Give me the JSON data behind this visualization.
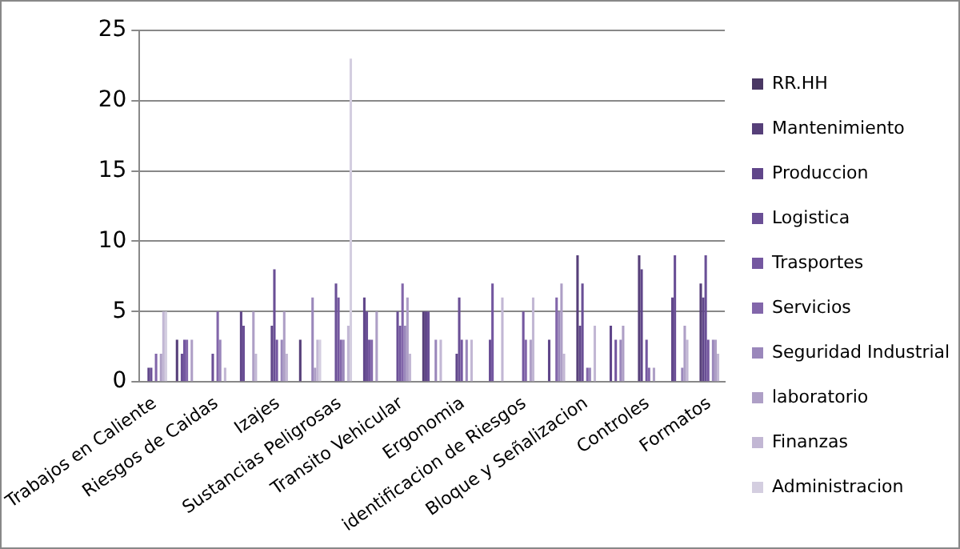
{
  "chart_data": {
    "type": "bar",
    "categories": [
      "Trabajos en Caliente",
      null,
      "Riesgos de Caidas",
      null,
      "Izajes",
      null,
      "Sustancias Peligrosas",
      null,
      "Transito Vehicular",
      null,
      "Ergonomia",
      null,
      "identificacion de Riesgos",
      null,
      "Bloque y Señalizacion",
      null,
      "Controles",
      null,
      "Formatos"
    ],
    "ylim": [
      0,
      25
    ],
    "yticks": [
      0,
      5,
      10,
      15,
      20,
      25
    ],
    "grid": "y",
    "legend": "right",
    "series": [
      {
        "name": "RR.HH",
        "color": "#493763",
        "values": [
          0,
          0,
          0,
          0,
          0,
          0,
          0,
          0,
          0,
          0,
          0,
          0,
          0,
          0,
          0,
          0,
          0,
          0,
          0
        ]
      },
      {
        "name": "Mantenimiento",
        "color": "#563f79",
        "values": [
          0,
          3,
          0,
          0,
          0,
          3,
          0,
          0,
          0,
          5,
          0,
          0,
          0,
          0,
          9,
          0,
          9,
          0,
          7
        ]
      },
      {
        "name": "Produccion",
        "color": "#60468a",
        "values": [
          1,
          0,
          0,
          5,
          4,
          0,
          0,
          6,
          0,
          5,
          2,
          0,
          0,
          3,
          4,
          4,
          8,
          6,
          6
        ]
      },
      {
        "name": "Logistica",
        "color": "#6a4f96",
        "values": [
          1,
          2,
          2,
          4,
          8,
          0,
          7,
          5,
          5,
          5,
          6,
          3,
          0,
          0,
          7,
          0,
          0,
          9,
          9
        ]
      },
      {
        "name": "Trasportes",
        "color": "#7457a0",
        "values": [
          0,
          3,
          0,
          0,
          3,
          0,
          6,
          3,
          4,
          0,
          3,
          7,
          5,
          0,
          0,
          3,
          3,
          0,
          3
        ]
      },
      {
        "name": "Servicios",
        "color": "#8266aa",
        "values": [
          2,
          3,
          5,
          0,
          0,
          0,
          3,
          3,
          7,
          0,
          0,
          0,
          3,
          6,
          1,
          0,
          1,
          0,
          0
        ]
      },
      {
        "name": "Seguridad Industrial",
        "color": "#9a87bb",
        "values": [
          0,
          0,
          3,
          0,
          3,
          6,
          3,
          0,
          4,
          3,
          3,
          0,
          0,
          5,
          1,
          3,
          0,
          1,
          3
        ]
      },
      {
        "name": "laboratorio",
        "color": "#ae9fc6",
        "values": [
          2,
          3,
          0,
          5,
          5,
          1,
          0,
          5,
          6,
          0,
          0,
          0,
          3,
          7,
          0,
          4,
          1,
          4,
          3
        ]
      },
      {
        "name": "Finanzas",
        "color": "#c2b7d4",
        "values": [
          5,
          0,
          1,
          2,
          2,
          3,
          4,
          0,
          2,
          3,
          3,
          6,
          6,
          2,
          4,
          0,
          0,
          3,
          2
        ]
      },
      {
        "name": "Administracion",
        "color": "#d4cee0",
        "values": [
          5,
          0,
          0,
          0,
          0,
          3,
          23,
          0,
          0,
          0,
          0,
          0,
          0,
          0,
          0,
          0,
          0,
          0,
          0
        ]
      }
    ]
  }
}
